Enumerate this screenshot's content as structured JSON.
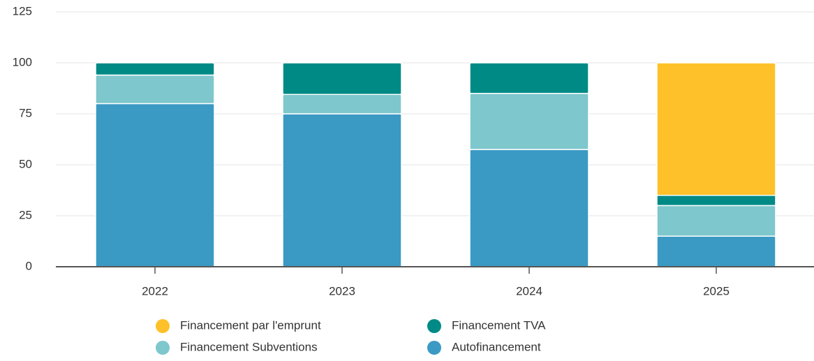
{
  "chart_data": {
    "type": "stacked_bar",
    "categories": [
      "2022",
      "2023",
      "2024",
      "2025"
    ],
    "series": [
      {
        "name": "Financement par l'emprunt",
        "color": "#fec12a",
        "values": [
          0,
          0,
          0,
          65
        ]
      },
      {
        "name": "Financement TVA",
        "color": "#008a86",
        "values": [
          6,
          15.5,
          15,
          5
        ]
      },
      {
        "name": "Financement Subventions",
        "color": "#7ec7cc",
        "values": [
          14,
          9.5,
          27.5,
          15
        ]
      },
      {
        "name": "Autofinancement",
        "color": "#3a9ac4",
        "values": [
          80,
          75,
          57.5,
          15
        ]
      }
    ],
    "ylim": [
      0,
      125
    ],
    "yticks": [
      0,
      25,
      50,
      75,
      100,
      125
    ],
    "grid": true
  }
}
